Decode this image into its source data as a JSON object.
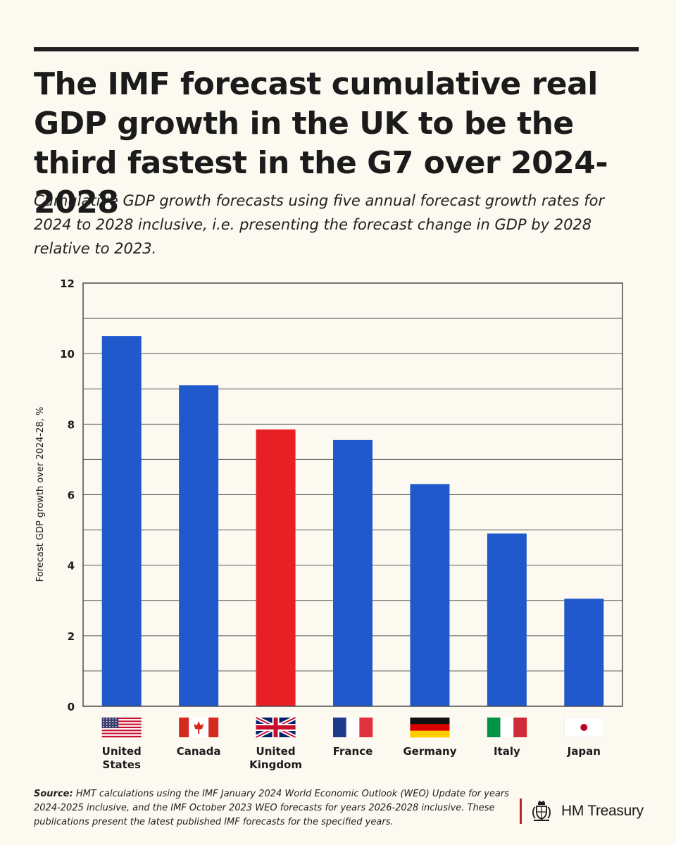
{
  "header": {
    "title": "The IMF forecast cumulative real GDP growth in the UK to be the third fastest in the G7 over 2024-2028",
    "subtitle": "Cumulative GDP growth forecasts using five annual forecast growth rates for 2024 to 2028 inclusive, i.e. presenting the forecast change in GDP by 2028 relative to 2023."
  },
  "chart_data": {
    "type": "bar",
    "categories": [
      "United States",
      "Canada",
      "United Kingdom",
      "France",
      "Germany",
      "Italy",
      "Japan"
    ],
    "category_lines": [
      [
        "United",
        "States"
      ],
      [
        "Canada"
      ],
      [
        "United",
        "Kingdom"
      ],
      [
        "France"
      ],
      [
        "Germany"
      ],
      [
        "Italy"
      ],
      [
        "Japan"
      ]
    ],
    "values": [
      10.5,
      9.1,
      7.85,
      7.55,
      6.3,
      4.9,
      3.05
    ],
    "bar_colors": [
      "#2059cc",
      "#2059cc",
      "#e81f25",
      "#2059cc",
      "#2059cc",
      "#2059cc",
      "#2059cc"
    ],
    "flags": [
      "us-flag-icon",
      "canada-flag-icon",
      "uk-flag-icon",
      "france-flag-icon",
      "germany-flag-icon",
      "italy-flag-icon",
      "japan-flag-icon"
    ],
    "xlabel": "",
    "ylabel": "Forecast GDP growth over 2024-28, %",
    "ylim": [
      0,
      12
    ],
    "yticks": [
      0,
      2,
      4,
      6,
      8,
      10,
      12
    ],
    "minor_gridlines": [
      1,
      3,
      5,
      7,
      9,
      11
    ],
    "grid": true,
    "legend": "none"
  },
  "footer": {
    "source_label": "Source:",
    "source_text": " HMT calculations using the IMF January 2024 World Economic Outlook (WEO) Update for years 2024-2025 inclusive, and the IMF October 2023 WEO forecasts for years 2026-2028 inclusive. These publications present the latest published IMF forecasts for the specified years.",
    "brand": "HM Treasury"
  },
  "colors": {
    "background": "#fcf9f0",
    "bar_default": "#2059cc",
    "bar_highlight": "#e81f25",
    "text": "#1b1b1b",
    "brand_accent": "#b8232a"
  }
}
